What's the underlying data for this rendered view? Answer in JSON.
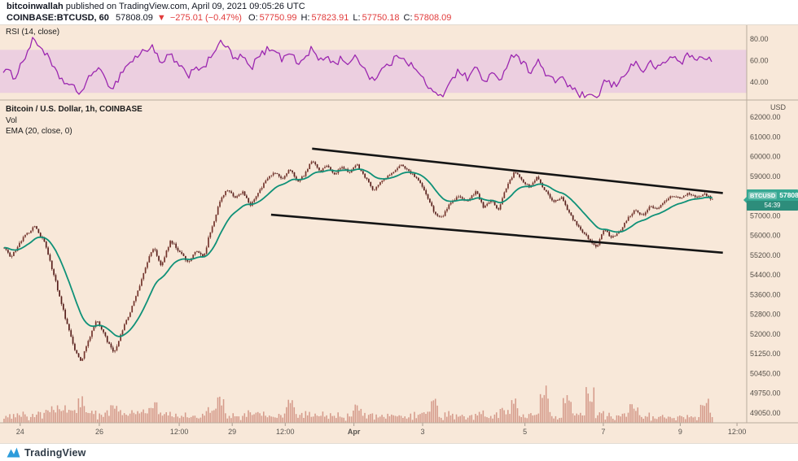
{
  "header": {
    "author": "bitcoinwallah",
    "published": " published on TradingView.com, April 09, 2021 09:05:26 UTC",
    "symbol": "COINBASE:BTCUSD, 60",
    "last_price": "57808.09",
    "direction_arrow": "▼",
    "change": "−275.01 (−0.47%)",
    "ohlc": [
      {
        "label": "O:",
        "value": "57750.99"
      },
      {
        "label": "H:",
        "value": "57823.91"
      },
      {
        "label": "L:",
        "value": "57750.18"
      },
      {
        "label": "C:",
        "value": "57808.09"
      }
    ]
  },
  "rsi_panel": {
    "legend": "RSI (14, close)",
    "axis_labels": [
      "80.00",
      "60.00",
      "40.00"
    ],
    "band": [
      70,
      30
    ]
  },
  "main_panel": {
    "legend_title": "Bitcoin / U.S. Dollar, 1h, COINBASE",
    "legend_vol": "Vol",
    "legend_ema": "EMA (20, close, 0)",
    "axis_currency": "USD",
    "y_ticks": [
      "62000.00",
      "61000.00",
      "60000.00",
      "59000.00",
      "58000.00",
      "57000.00",
      "56000.00",
      "55200.00",
      "54400.00",
      "53600.00",
      "52800.00",
      "52000.00",
      "51250.00",
      "50450.00",
      "49750.00",
      "49050.00"
    ],
    "hidden_tick": "58000.00",
    "price_tag": {
      "symbol": "BTCUSD",
      "price": "57808.09",
      "countdown": "54:39"
    }
  },
  "time_axis": [
    {
      "label": "24",
      "t": 0.027
    },
    {
      "label": "26",
      "t": 0.133
    },
    {
      "label": "12:00",
      "t": 0.24
    },
    {
      "label": "29",
      "t": 0.311
    },
    {
      "label": "12:00",
      "t": 0.382
    },
    {
      "label": "Apr",
      "t": 0.474,
      "bold": true
    },
    {
      "label": "3",
      "t": 0.566
    },
    {
      "label": "5",
      "t": 0.703
    },
    {
      "label": "7",
      "t": 0.808
    },
    {
      "label": "9",
      "t": 0.911
    },
    {
      "label": "12:00",
      "t": 0.987
    }
  ],
  "footer": {
    "brand": "TradingView"
  },
  "chart_data": {
    "type": "candlestick",
    "symbol": "COINBASE:BTCUSD",
    "interval": "1h",
    "title": "Bitcoin / U.S. Dollar, 1h, COINBASE",
    "indicators": [
      "Vol",
      "EMA (20, close, 0)",
      "RSI (14, close)"
    ],
    "y_range_approx": [
      49050,
      62400
    ],
    "last": {
      "open": 57750.99,
      "high": 57823.91,
      "low": 57750.18,
      "close": 57808.09,
      "change": -275.01,
      "change_pct": -0.47
    },
    "price_keypoints": [
      [
        0.004,
        55500
      ],
      [
        0.013,
        55100
      ],
      [
        0.03,
        55900
      ],
      [
        0.045,
        56450
      ],
      [
        0.06,
        55600
      ],
      [
        0.072,
        54300
      ],
      [
        0.085,
        52800
      ],
      [
        0.098,
        51500
      ],
      [
        0.108,
        50950
      ],
      [
        0.118,
        51800
      ],
      [
        0.128,
        52600
      ],
      [
        0.14,
        51900
      ],
      [
        0.152,
        51250
      ],
      [
        0.165,
        52300
      ],
      [
        0.18,
        53400
      ],
      [
        0.195,
        54800
      ],
      [
        0.205,
        55550
      ],
      [
        0.215,
        54800
      ],
      [
        0.228,
        55800
      ],
      [
        0.24,
        55300
      ],
      [
        0.252,
        54900
      ],
      [
        0.262,
        55450
      ],
      [
        0.272,
        55100
      ],
      [
        0.285,
        56600
      ],
      [
        0.295,
        57900
      ],
      [
        0.305,
        58350
      ],
      [
        0.315,
        57900
      ],
      [
        0.325,
        58200
      ],
      [
        0.335,
        57500
      ],
      [
        0.345,
        58100
      ],
      [
        0.357,
        58900
      ],
      [
        0.368,
        59200
      ],
      [
        0.378,
        58800
      ],
      [
        0.388,
        59400
      ],
      [
        0.398,
        58700
      ],
      [
        0.408,
        59100
      ],
      [
        0.418,
        59850
      ],
      [
        0.428,
        59200
      ],
      [
        0.438,
        59600
      ],
      [
        0.448,
        59100
      ],
      [
        0.458,
        59500
      ],
      [
        0.468,
        59150
      ],
      [
        0.478,
        59600
      ],
      [
        0.49,
        58900
      ],
      [
        0.5,
        58300
      ],
      [
        0.512,
        58800
      ],
      [
        0.524,
        59100
      ],
      [
        0.536,
        59600
      ],
      [
        0.548,
        59250
      ],
      [
        0.558,
        58900
      ],
      [
        0.57,
        58200
      ],
      [
        0.582,
        57150
      ],
      [
        0.592,
        56900
      ],
      [
        0.602,
        57600
      ],
      [
        0.614,
        58000
      ],
      [
        0.626,
        57700
      ],
      [
        0.638,
        58250
      ],
      [
        0.648,
        57400
      ],
      [
        0.658,
        57800
      ],
      [
        0.668,
        57300
      ],
      [
        0.678,
        58400
      ],
      [
        0.69,
        59250
      ],
      [
        0.7,
        58800
      ],
      [
        0.71,
        58400
      ],
      [
        0.72,
        58950
      ],
      [
        0.73,
        58300
      ],
      [
        0.742,
        57700
      ],
      [
        0.752,
        57950
      ],
      [
        0.762,
        57200
      ],
      [
        0.772,
        56600
      ],
      [
        0.782,
        56100
      ],
      [
        0.792,
        55750
      ],
      [
        0.8,
        55500
      ],
      [
        0.81,
        56300
      ],
      [
        0.82,
        55900
      ],
      [
        0.83,
        56150
      ],
      [
        0.84,
        56800
      ],
      [
        0.852,
        57300
      ],
      [
        0.862,
        57000
      ],
      [
        0.872,
        57500
      ],
      [
        0.882,
        57300
      ],
      [
        0.892,
        57800
      ],
      [
        0.902,
        58000
      ],
      [
        0.912,
        57850
      ],
      [
        0.922,
        58100
      ],
      [
        0.932,
        57950
      ],
      [
        0.945,
        58100
      ],
      [
        0.955,
        57808
      ]
    ],
    "rsi_keypoints": [
      [
        0.004,
        52
      ],
      [
        0.02,
        45
      ],
      [
        0.045,
        80
      ],
      [
        0.06,
        68
      ],
      [
        0.075,
        48
      ],
      [
        0.09,
        38
      ],
      [
        0.108,
        30
      ],
      [
        0.12,
        44
      ],
      [
        0.13,
        55
      ],
      [
        0.14,
        42
      ],
      [
        0.152,
        35
      ],
      [
        0.165,
        52
      ],
      [
        0.18,
        62
      ],
      [
        0.195,
        70
      ],
      [
        0.205,
        74
      ],
      [
        0.215,
        55
      ],
      [
        0.228,
        66
      ],
      [
        0.24,
        54
      ],
      [
        0.252,
        46
      ],
      [
        0.262,
        56
      ],
      [
        0.272,
        50
      ],
      [
        0.285,
        68
      ],
      [
        0.295,
        76
      ],
      [
        0.305,
        72
      ],
      [
        0.315,
        60
      ],
      [
        0.325,
        64
      ],
      [
        0.335,
        52
      ],
      [
        0.345,
        62
      ],
      [
        0.357,
        70
      ],
      [
        0.368,
        72
      ],
      [
        0.378,
        60
      ],
      [
        0.388,
        70
      ],
      [
        0.398,
        56
      ],
      [
        0.408,
        62
      ],
      [
        0.418,
        72
      ],
      [
        0.428,
        58
      ],
      [
        0.438,
        65
      ],
      [
        0.448,
        56
      ],
      [
        0.458,
        63
      ],
      [
        0.468,
        56
      ],
      [
        0.478,
        64
      ],
      [
        0.49,
        50
      ],
      [
        0.5,
        42
      ],
      [
        0.512,
        52
      ],
      [
        0.524,
        58
      ],
      [
        0.536,
        66
      ],
      [
        0.548,
        58
      ],
      [
        0.558,
        50
      ],
      [
        0.57,
        40
      ],
      [
        0.582,
        28
      ],
      [
        0.592,
        26
      ],
      [
        0.602,
        42
      ],
      [
        0.614,
        50
      ],
      [
        0.626,
        44
      ],
      [
        0.638,
        54
      ],
      [
        0.648,
        40
      ],
      [
        0.658,
        48
      ],
      [
        0.668,
        40
      ],
      [
        0.678,
        56
      ],
      [
        0.69,
        68
      ],
      [
        0.7,
        58
      ],
      [
        0.71,
        50
      ],
      [
        0.72,
        60
      ],
      [
        0.73,
        48
      ],
      [
        0.742,
        40
      ],
      [
        0.752,
        46
      ],
      [
        0.762,
        36
      ],
      [
        0.772,
        30
      ],
      [
        0.782,
        27
      ],
      [
        0.792,
        25
      ],
      [
        0.8,
        24
      ],
      [
        0.81,
        42
      ],
      [
        0.82,
        36
      ],
      [
        0.83,
        40
      ],
      [
        0.84,
        52
      ],
      [
        0.852,
        58
      ],
      [
        0.862,
        50
      ],
      [
        0.872,
        58
      ],
      [
        0.882,
        52
      ],
      [
        0.892,
        60
      ],
      [
        0.902,
        64
      ],
      [
        0.912,
        58
      ],
      [
        0.922,
        66
      ],
      [
        0.932,
        60
      ],
      [
        0.945,
        65
      ],
      [
        0.955,
        58
      ]
    ],
    "trendlines": [
      {
        "x1": 0.418,
        "v1": 60400,
        "x2": 0.968,
        "v2": 58150
      },
      {
        "x1": 0.363,
        "v1": 57050,
        "x2": 0.968,
        "v2": 55300
      }
    ],
    "volume_spikes": [
      {
        "t": 0.108,
        "h": 34
      },
      {
        "t": 0.152,
        "h": 28
      },
      {
        "t": 0.205,
        "h": 30
      },
      {
        "t": 0.295,
        "h": 34
      },
      {
        "t": 0.388,
        "h": 30
      },
      {
        "t": 0.478,
        "h": 24
      },
      {
        "t": 0.582,
        "h": 36
      },
      {
        "t": 0.69,
        "h": 32
      },
      {
        "t": 0.73,
        "h": 52
      },
      {
        "t": 0.76,
        "h": 40
      },
      {
        "t": 0.792,
        "h": 44
      },
      {
        "t": 0.85,
        "h": 26
      },
      {
        "t": 0.945,
        "h": 30
      }
    ]
  },
  "colors": {
    "background": "#f8e8d9",
    "panel_divider": "#b9ab9d",
    "rsi_band": "#eccfe0",
    "rsi_line": "#9c27b0",
    "candle_up": "#73342c",
    "candle_down": "#571f1c",
    "ema": "#0f9178",
    "volume": "rgba(178,76,60,0.5)",
    "trendline": "#151515",
    "tag_bg": "#36a893",
    "red": "#e13b3b",
    "axis_text": "#554f48",
    "text": "#131722"
  }
}
